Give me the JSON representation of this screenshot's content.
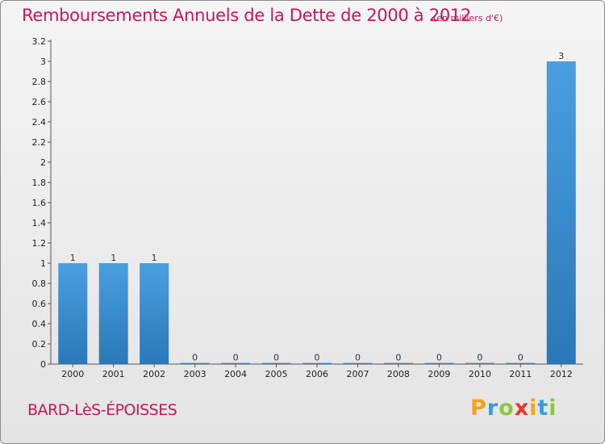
{
  "chart_data": {
    "type": "bar",
    "title": "Remboursements Annuels de la Dette de 2000 à 2012",
    "subtitle": "(en milliers d'€)",
    "xlabel": "",
    "ylabel": "",
    "categories": [
      "2000",
      "2001",
      "2002",
      "2003",
      "2004",
      "2005",
      "2006",
      "2007",
      "2008",
      "2009",
      "2010",
      "2011",
      "2012"
    ],
    "values": [
      1,
      1,
      1,
      0,
      0,
      0,
      0,
      0,
      0,
      0,
      0,
      0,
      3
    ],
    "value_labels": [
      "1",
      "1",
      "1",
      "0",
      "0",
      "0",
      "0",
      "0",
      "0",
      "0",
      "0",
      "0",
      "3"
    ],
    "ylim": [
      0,
      3.2
    ],
    "yticks": [
      0,
      0.2,
      0.4,
      0.6,
      0.8,
      1,
      1.2,
      1.4,
      1.6,
      1.8,
      2,
      2.2,
      2.4,
      2.6,
      2.8,
      3,
      3.2
    ],
    "ytick_labels": [
      "0",
      "0.2",
      "0.4",
      "0.6",
      "0.8",
      "1",
      "1.2",
      "1.4",
      "1.6",
      "1.8",
      "2",
      "2.2",
      "2.4",
      "2.6",
      "2.8",
      "3",
      "3.2"
    ],
    "grid": false,
    "bar_color": "#4a9fe0",
    "bar_color_dark": "#2a78b8"
  },
  "commune": "BARD-LèS-ÉPOISSES",
  "logo": {
    "letters": [
      "P",
      "r",
      "o",
      "x",
      "i",
      "t",
      "i"
    ],
    "colors": [
      "#f7a21b",
      "#3f9ad8",
      "#8dc63f",
      "#e8342a",
      "#f7a21b",
      "#3f9ad8",
      "#8dc63f"
    ]
  }
}
